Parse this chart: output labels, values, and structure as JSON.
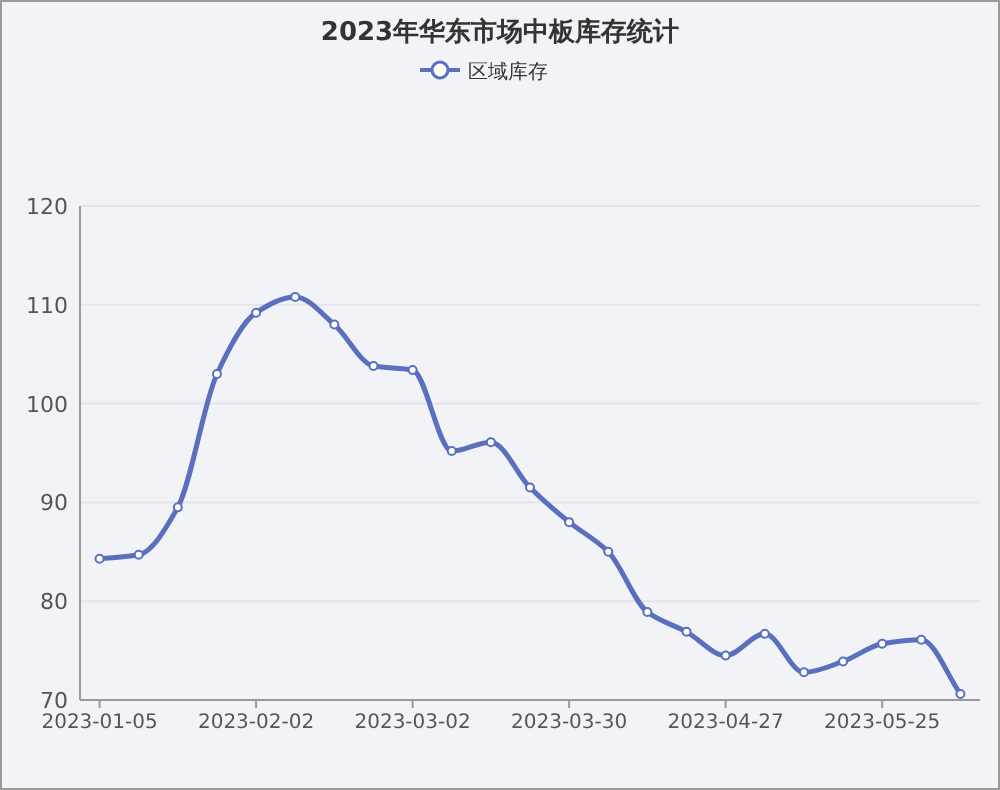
{
  "chart_data": {
    "type": "line",
    "title": "2023年华东市场中板库存统计",
    "categories": [
      "2023-01-05",
      null,
      null,
      null,
      "2023-02-02",
      null,
      null,
      null,
      "2023-03-02",
      null,
      null,
      null,
      "2023-03-30",
      null,
      null,
      null,
      "2023-04-27",
      null,
      null,
      null,
      "2023-05-25",
      null,
      null
    ],
    "series": [
      {
        "name": "区域库存",
        "color": "#5b6fbf",
        "values": [
          84.3,
          84.7,
          89.5,
          103.0,
          109.2,
          110.8,
          108.0,
          103.8,
          103.4,
          95.2,
          96.1,
          91.5,
          88.0,
          85.0,
          78.9,
          76.9,
          74.5,
          76.7,
          72.8,
          73.9,
          75.7,
          76.1,
          70.6
        ]
      }
    ],
    "ylim": [
      70,
      120
    ],
    "yticks": [
      70,
      80,
      90,
      100,
      110,
      120
    ],
    "grid": "y",
    "legend": "top",
    "marker": "circle",
    "line_style": "solid"
  }
}
